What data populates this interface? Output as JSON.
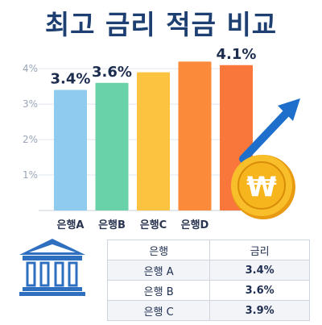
{
  "title": "최고 금리 적금 비교",
  "chart_data": {
    "type": "bar",
    "title": "최고 금리 적금 비교",
    "categories": [
      "은행 A",
      "은행 B",
      "은행 C",
      "은행 D",
      ""
    ],
    "display_categories": [
      "은행A",
      "은행B",
      "은행C",
      "은행D",
      ""
    ],
    "values": [
      3.4,
      3.6,
      3.9,
      4.2,
      4.1
    ],
    "value_labels": [
      "3.4%",
      "3.6%",
      "",
      "",
      "4.1%"
    ],
    "colors": [
      "#8ecbee",
      "#6ad2a9",
      "#fbc33f",
      "#fb8a3b",
      "#f9773a"
    ],
    "yticks": [
      "1%",
      "2%",
      "3%",
      "4%"
    ],
    "ylim": [
      0,
      4.3
    ],
    "grid": true,
    "legend": "none"
  },
  "table": {
    "headers": [
      "은행",
      "금리"
    ],
    "rows": [
      [
        "은행 A",
        "3.4%"
      ],
      [
        "은행 B",
        "3.6%"
      ],
      [
        "은행 C",
        "3.9%"
      ]
    ]
  },
  "icons": {
    "coin": "won-coin-icon",
    "arrow": "trend-up-arrow-icon",
    "bank": "bank-building-icon"
  },
  "colors": {
    "title": "#1d3f72",
    "arrow": "#1e6fcc",
    "coin": "#f6b51d",
    "bank": "#2f6fc0"
  }
}
